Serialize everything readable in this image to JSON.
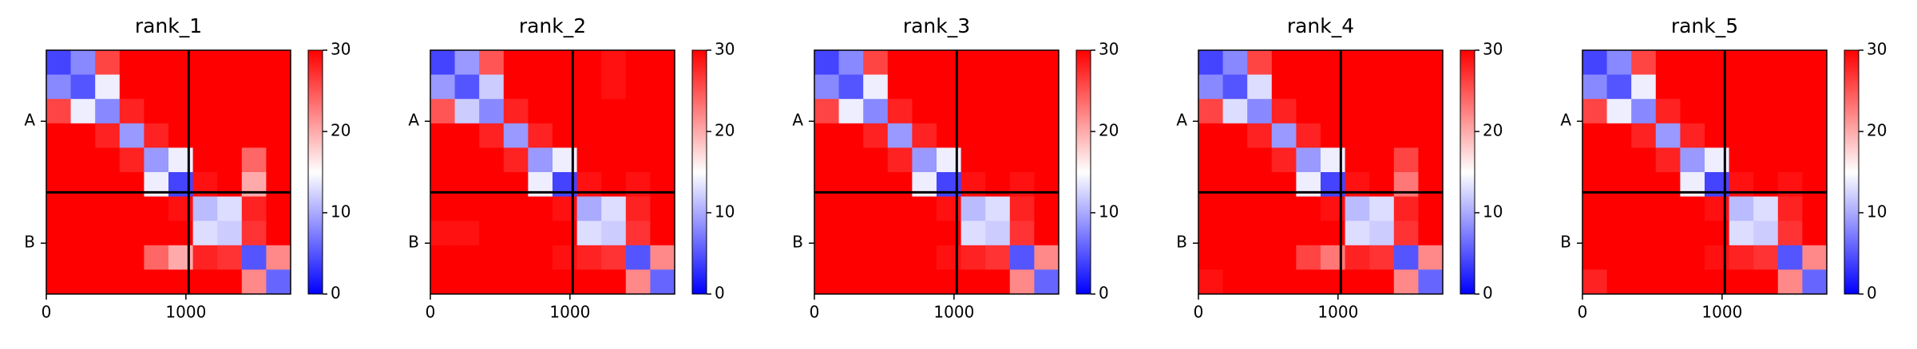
{
  "chart_data": [
    {
      "type": "heatmap",
      "title": "rank_1",
      "colormap": "bwr",
      "clim": [
        0,
        30
      ],
      "cticks": [
        0,
        10,
        20,
        30
      ],
      "xlim": [
        0,
        1750
      ],
      "ylim": [
        1750,
        0
      ],
      "xticks": [
        0,
        1000
      ],
      "yticks": [
        {
          "value": 510,
          "label": "A"
        },
        {
          "value": 1385,
          "label": "B"
        }
      ],
      "chain_breaks": [
        1020
      ],
      "bins": [
        0,
        175,
        350,
        525,
        700,
        875,
        1050,
        1225,
        1400,
        1575,
        1750
      ],
      "values": [
        [
          4,
          8,
          26,
          30,
          30,
          30,
          30,
          30,
          30,
          30
        ],
        [
          8,
          5,
          14,
          30,
          30,
          30,
          30,
          30,
          30,
          30
        ],
        [
          26,
          14,
          8,
          28,
          30,
          30,
          30,
          30,
          30,
          30
        ],
        [
          30,
          30,
          28,
          9,
          28,
          30,
          30,
          30,
          30,
          30
        ],
        [
          30,
          30,
          30,
          28,
          9,
          14,
          30,
          30,
          24,
          30
        ],
        [
          30,
          30,
          30,
          30,
          14,
          4,
          29,
          30,
          20,
          30
        ],
        [
          30,
          30,
          30,
          30,
          30,
          29,
          11,
          13,
          28,
          30
        ],
        [
          30,
          30,
          30,
          30,
          30,
          30,
          13,
          12,
          27,
          30
        ],
        [
          30,
          30,
          30,
          30,
          24,
          20,
          28,
          27,
          5,
          22
        ],
        [
          30,
          30,
          30,
          30,
          30,
          30,
          30,
          30,
          22,
          6
        ]
      ]
    },
    {
      "type": "heatmap",
      "title": "rank_2",
      "colormap": "bwr",
      "clim": [
        0,
        30
      ],
      "cticks": [
        0,
        10,
        20,
        30
      ],
      "xlim": [
        0,
        1750
      ],
      "ylim": [
        1750,
        0
      ],
      "xticks": [
        0,
        1000
      ],
      "yticks": [
        {
          "value": 510,
          "label": "A"
        },
        {
          "value": 1385,
          "label": "B"
        }
      ],
      "chain_breaks": [
        1020
      ],
      "bins": [
        0,
        175,
        350,
        525,
        700,
        875,
        1050,
        1225,
        1400,
        1575,
        1750
      ],
      "values": [
        [
          4,
          9,
          25,
          30,
          30,
          30,
          30,
          29,
          30,
          30
        ],
        [
          9,
          5,
          12,
          30,
          30,
          30,
          30,
          29,
          30,
          30
        ],
        [
          25,
          12,
          8,
          28,
          30,
          30,
          30,
          30,
          30,
          30
        ],
        [
          30,
          30,
          28,
          9,
          28,
          30,
          30,
          30,
          30,
          30
        ],
        [
          30,
          30,
          30,
          28,
          9,
          14,
          30,
          30,
          30,
          30
        ],
        [
          30,
          30,
          30,
          30,
          14,
          4,
          29,
          30,
          29,
          30
        ],
        [
          30,
          30,
          30,
          30,
          30,
          29,
          10,
          13,
          28,
          30
        ],
        [
          29,
          29,
          30,
          30,
          30,
          30,
          13,
          12,
          27,
          30
        ],
        [
          30,
          30,
          30,
          30,
          30,
          29,
          28,
          27,
          5,
          22
        ],
        [
          30,
          30,
          30,
          30,
          30,
          30,
          30,
          30,
          22,
          6
        ]
      ]
    },
    {
      "type": "heatmap",
      "title": "rank_3",
      "colormap": "bwr",
      "clim": [
        0,
        30
      ],
      "cticks": [
        0,
        10,
        20,
        30
      ],
      "xlim": [
        0,
        1750
      ],
      "ylim": [
        1750,
        0
      ],
      "xticks": [
        0,
        1000
      ],
      "yticks": [
        {
          "value": 510,
          "label": "A"
        },
        {
          "value": 1385,
          "label": "B"
        }
      ],
      "chain_breaks": [
        1020
      ],
      "bins": [
        0,
        175,
        350,
        525,
        700,
        875,
        1050,
        1225,
        1400,
        1575,
        1750
      ],
      "values": [
        [
          4,
          8,
          26,
          30,
          30,
          30,
          30,
          30,
          30,
          30
        ],
        [
          8,
          5,
          14,
          30,
          30,
          30,
          30,
          30,
          30,
          30
        ],
        [
          26,
          14,
          8,
          28,
          30,
          30,
          30,
          30,
          30,
          30
        ],
        [
          30,
          30,
          28,
          9,
          28,
          30,
          30,
          30,
          30,
          30
        ],
        [
          30,
          30,
          30,
          28,
          9,
          14,
          30,
          30,
          30,
          30
        ],
        [
          30,
          30,
          30,
          30,
          14,
          4,
          29,
          30,
          29,
          30
        ],
        [
          30,
          30,
          30,
          30,
          30,
          29,
          11,
          13,
          28,
          30
        ],
        [
          30,
          30,
          30,
          30,
          30,
          30,
          13,
          12,
          27,
          30
        ],
        [
          30,
          30,
          30,
          30,
          30,
          29,
          28,
          27,
          5,
          22
        ],
        [
          30,
          30,
          30,
          30,
          30,
          30,
          30,
          30,
          22,
          6
        ]
      ]
    },
    {
      "type": "heatmap",
      "title": "rank_4",
      "colormap": "bwr",
      "clim": [
        0,
        30
      ],
      "cticks": [
        0,
        10,
        20,
        30
      ],
      "xlim": [
        0,
        1750
      ],
      "ylim": [
        1750,
        0
      ],
      "xticks": [
        0,
        1000
      ],
      "yticks": [
        {
          "value": 510,
          "label": "A"
        },
        {
          "value": 1385,
          "label": "B"
        }
      ],
      "chain_breaks": [
        1020
      ],
      "bins": [
        0,
        175,
        350,
        525,
        700,
        875,
        1050,
        1225,
        1400,
        1575,
        1750
      ],
      "values": [
        [
          4,
          8,
          26,
          30,
          30,
          30,
          30,
          30,
          30,
          30
        ],
        [
          8,
          5,
          13,
          30,
          30,
          30,
          30,
          30,
          30,
          30
        ],
        [
          26,
          13,
          8,
          28,
          30,
          30,
          30,
          30,
          30,
          30
        ],
        [
          30,
          30,
          28,
          9,
          28,
          30,
          30,
          30,
          30,
          30
        ],
        [
          30,
          30,
          30,
          28,
          9,
          14,
          30,
          30,
          26,
          30
        ],
        [
          30,
          30,
          30,
          30,
          14,
          4,
          29,
          30,
          23,
          30
        ],
        [
          30,
          30,
          30,
          30,
          30,
          29,
          11,
          13,
          28,
          30
        ],
        [
          30,
          30,
          30,
          30,
          30,
          30,
          13,
          12,
          27,
          30
        ],
        [
          30,
          30,
          30,
          30,
          26,
          23,
          28,
          27,
          5,
          22
        ],
        [
          29,
          30,
          30,
          30,
          30,
          30,
          30,
          30,
          22,
          6
        ]
      ]
    },
    {
      "type": "heatmap",
      "title": "rank_5",
      "colormap": "bwr",
      "clim": [
        0,
        30
      ],
      "cticks": [
        0,
        10,
        20,
        30
      ],
      "xlim": [
        0,
        1750
      ],
      "ylim": [
        1750,
        0
      ],
      "xticks": [
        0,
        1000
      ],
      "yticks": [
        {
          "value": 510,
          "label": "A"
        },
        {
          "value": 1385,
          "label": "B"
        }
      ],
      "chain_breaks": [
        1020
      ],
      "bins": [
        0,
        175,
        350,
        525,
        700,
        875,
        1050,
        1225,
        1400,
        1575,
        1750
      ],
      "values": [
        [
          4,
          8,
          26,
          30,
          30,
          30,
          30,
          30,
          30,
          30
        ],
        [
          8,
          5,
          14,
          30,
          30,
          30,
          30,
          30,
          30,
          30
        ],
        [
          26,
          14,
          8,
          28,
          30,
          30,
          30,
          30,
          30,
          30
        ],
        [
          30,
          30,
          28,
          9,
          28,
          30,
          30,
          30,
          30,
          30
        ],
        [
          30,
          30,
          30,
          28,
          9,
          14,
          30,
          30,
          30,
          30
        ],
        [
          30,
          30,
          30,
          30,
          14,
          4,
          29,
          30,
          29,
          30
        ],
        [
          30,
          30,
          30,
          30,
          30,
          29,
          11,
          13,
          28,
          30
        ],
        [
          30,
          30,
          30,
          30,
          30,
          30,
          13,
          12,
          27,
          30
        ],
        [
          30,
          30,
          30,
          30,
          30,
          29,
          28,
          27,
          5,
          22
        ],
        [
          28,
          30,
          30,
          30,
          30,
          30,
          30,
          30,
          22,
          6
        ]
      ]
    }
  ]
}
